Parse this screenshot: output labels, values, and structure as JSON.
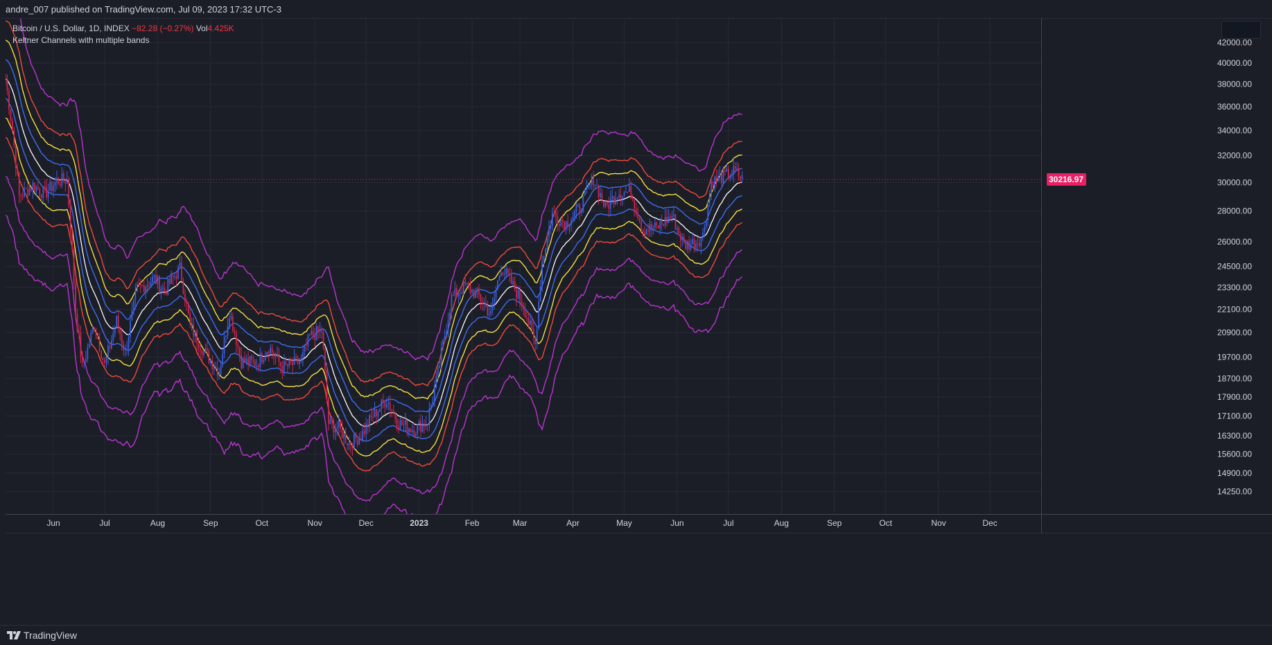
{
  "header": {
    "published_by": "andre_007 published on TradingView.com, Jul 09, 2023 17:32 UTC-3"
  },
  "legend": {
    "symbol": "Bitcoin / U.S. Dollar, 1D, INDEX",
    "change": "−82.28 (−0.27%)",
    "vol_label": "Vol",
    "vol_value": "4.425K",
    "indicator": "Keltner Channels with multiple bands"
  },
  "footer": {
    "brand": "TradingView"
  },
  "colors": {
    "background": "#1c1e27",
    "grid": "#262a35",
    "up": "#3a60e0",
    "down": "#d0254c",
    "basis": "#ffffff",
    "band1": "#3d6ef0",
    "band2": "#f5e142",
    "band3": "#f04a3e",
    "band4": "#b935d0",
    "price_line": "#e91e63"
  },
  "chart_data": {
    "type": "candlestick",
    "scale": "log",
    "ylim": [
      13500,
      44500
    ],
    "y_ticks": [
      "42000.00",
      "40000.00",
      "38000.00",
      "36000.00",
      "34000.00",
      "32000.00",
      "30000.00",
      "28000.00",
      "26000.00",
      "24500.00",
      "23300.00",
      "22100.00",
      "20900.00",
      "19700.00",
      "18700.00",
      "17900.00",
      "17100.00",
      "16300.00",
      "15600.00",
      "14900.00",
      "14250.00"
    ],
    "x_ticks": [
      {
        "label": "Jun",
        "date": "2022-06-01"
      },
      {
        "label": "Jul",
        "date": "2022-07-01"
      },
      {
        "label": "Aug",
        "date": "2022-08-01"
      },
      {
        "label": "Sep",
        "date": "2022-09-01"
      },
      {
        "label": "Oct",
        "date": "2022-10-01"
      },
      {
        "label": "Nov",
        "date": "2022-11-01"
      },
      {
        "label": "Dec",
        "date": "2022-12-01"
      },
      {
        "label": "2023",
        "date": "2023-01-01"
      },
      {
        "label": "Feb",
        "date": "2023-02-01"
      },
      {
        "label": "Mar",
        "date": "2023-03-01"
      },
      {
        "label": "Apr",
        "date": "2023-04-01"
      },
      {
        "label": "May",
        "date": "2023-05-01"
      },
      {
        "label": "Jun",
        "date": "2023-06-01"
      },
      {
        "label": "Jul",
        "date": "2023-07-01"
      },
      {
        "label": "Aug",
        "date": "2023-08-01"
      },
      {
        "label": "Sep",
        "date": "2023-09-01"
      },
      {
        "label": "Oct",
        "date": "2023-10-01"
      },
      {
        "label": "Nov",
        "date": "2023-11-01"
      },
      {
        "label": "Dec",
        "date": "2023-12-01"
      }
    ],
    "x_range": [
      "2022-05-04",
      "2023-12-31"
    ],
    "last_price": 30216.97,
    "last_price_label": "30216.97",
    "close_series": [
      [
        "2022-05-04",
        38500
      ],
      [
        "2022-05-08",
        34000
      ],
      [
        "2022-05-12",
        29000
      ],
      [
        "2022-05-20",
        29800
      ],
      [
        "2022-05-27",
        29200
      ],
      [
        "2022-06-03",
        30100
      ],
      [
        "2022-06-09",
        30200
      ],
      [
        "2022-06-14",
        22000
      ],
      [
        "2022-06-18",
        19200
      ],
      [
        "2022-06-25",
        21300
      ],
      [
        "2022-07-01",
        19300
      ],
      [
        "2022-07-08",
        21500
      ],
      [
        "2022-07-13",
        19900
      ],
      [
        "2022-07-20",
        23200
      ],
      [
        "2022-07-30",
        23800
      ],
      [
        "2022-08-05",
        23100
      ],
      [
        "2022-08-14",
        24400
      ],
      [
        "2022-08-20",
        21200
      ],
      [
        "2022-08-28",
        20000
      ],
      [
        "2022-09-06",
        19000
      ],
      [
        "2022-09-12",
        22000
      ],
      [
        "2022-09-19",
        19500
      ],
      [
        "2022-09-28",
        19400
      ],
      [
        "2022-10-05",
        20200
      ],
      [
        "2022-10-13",
        19200
      ],
      [
        "2022-10-24",
        19500
      ],
      [
        "2022-10-29",
        20700
      ],
      [
        "2022-11-05",
        21000
      ],
      [
        "2022-11-09",
        16800
      ],
      [
        "2022-11-15",
        16600
      ],
      [
        "2022-11-21",
        16000
      ],
      [
        "2022-11-28",
        16300
      ],
      [
        "2022-12-05",
        17100
      ],
      [
        "2022-12-13",
        17800
      ],
      [
        "2022-12-20",
        16800
      ],
      [
        "2022-12-29",
        16550
      ],
      [
        "2023-01-06",
        16900
      ],
      [
        "2023-01-12",
        18900
      ],
      [
        "2023-01-20",
        22700
      ],
      [
        "2023-01-28",
        23400
      ],
      [
        "2023-02-05",
        22800
      ],
      [
        "2023-02-12",
        21800
      ],
      [
        "2023-02-18",
        24500
      ],
      [
        "2023-02-26",
        23200
      ],
      [
        "2023-03-03",
        22300
      ],
      [
        "2023-03-10",
        20300
      ],
      [
        "2023-03-14",
        24800
      ],
      [
        "2023-03-20",
        27800
      ],
      [
        "2023-03-28",
        27200
      ],
      [
        "2023-04-05",
        28200
      ],
      [
        "2023-04-13",
        30300
      ],
      [
        "2023-04-20",
        28200
      ],
      [
        "2023-04-27",
        29300
      ],
      [
        "2023-05-05",
        29300
      ],
      [
        "2023-05-12",
        26800
      ],
      [
        "2023-05-20",
        26900
      ],
      [
        "2023-05-29",
        27700
      ],
      [
        "2023-06-05",
        25800
      ],
      [
        "2023-06-12",
        26000
      ],
      [
        "2023-06-16",
        26400
      ],
      [
        "2023-06-21",
        30000
      ],
      [
        "2023-06-29",
        30500
      ],
      [
        "2023-07-05",
        30800
      ],
      [
        "2023-07-09",
        30217
      ]
    ],
    "bands": [
      {
        "color": "#ffffff",
        "offset": 0
      },
      {
        "color": "#3d6ef0",
        "offset": 1
      },
      {
        "color": "#3d6ef0",
        "offset": -1
      },
      {
        "color": "#f5e142",
        "offset": 2
      },
      {
        "color": "#f5e142",
        "offset": -2
      },
      {
        "color": "#f04a3e",
        "offset": 3
      },
      {
        "color": "#f04a3e",
        "offset": -3
      },
      {
        "color": "#b935d0",
        "offset": 5
      },
      {
        "color": "#b935d0",
        "offset": -5
      },
      {
        "color": "#b935d0",
        "offset": -7
      }
    ]
  }
}
